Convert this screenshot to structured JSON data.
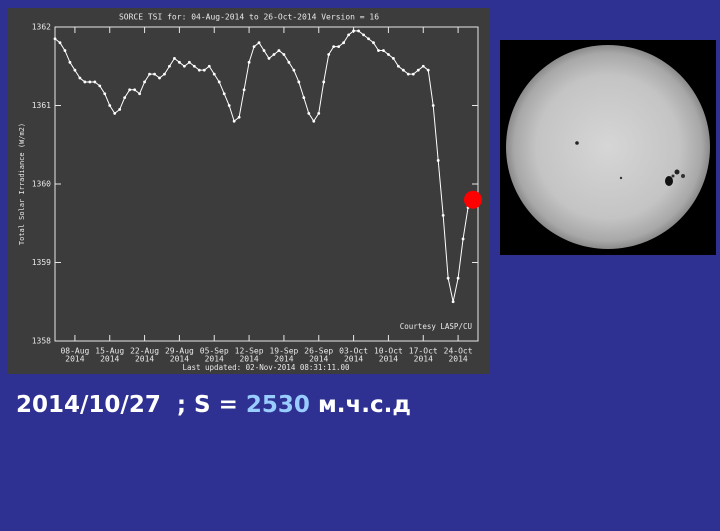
{
  "chart_data": {
    "type": "line",
    "title": "SORCE TSI for: 04-Aug-2014 to 26-Oct-2014 Version = 16",
    "y_label": "Total Solar Irradiance (W/m2)",
    "annotations": [
      "Courtesy LASP/CU",
      "Last updated: 02-Nov-2014 08:31:11.00"
    ],
    "x": [
      "2014-08-04",
      "2014-08-05",
      "2014-08-06",
      "2014-08-07",
      "2014-08-08",
      "2014-08-09",
      "2014-08-10",
      "2014-08-11",
      "2014-08-12",
      "2014-08-13",
      "2014-08-14",
      "2014-08-15",
      "2014-08-16",
      "2014-08-17",
      "2014-08-18",
      "2014-08-19",
      "2014-08-20",
      "2014-08-21",
      "2014-08-22",
      "2014-08-23",
      "2014-08-24",
      "2014-08-25",
      "2014-08-26",
      "2014-08-27",
      "2014-08-28",
      "2014-08-29",
      "2014-08-30",
      "2014-08-31",
      "2014-09-01",
      "2014-09-02",
      "2014-09-03",
      "2014-09-04",
      "2014-09-05",
      "2014-09-06",
      "2014-09-07",
      "2014-09-08",
      "2014-09-09",
      "2014-09-10",
      "2014-09-11",
      "2014-09-12",
      "2014-09-13",
      "2014-09-14",
      "2014-09-15",
      "2014-09-16",
      "2014-09-17",
      "2014-09-18",
      "2014-09-19",
      "2014-09-20",
      "2014-09-21",
      "2014-09-22",
      "2014-09-23",
      "2014-09-24",
      "2014-09-25",
      "2014-09-26",
      "2014-09-27",
      "2014-09-28",
      "2014-09-29",
      "2014-09-30",
      "2014-10-01",
      "2014-10-02",
      "2014-10-03",
      "2014-10-04",
      "2014-10-05",
      "2014-10-06",
      "2014-10-07",
      "2014-10-08",
      "2014-10-09",
      "2014-10-10",
      "2014-10-11",
      "2014-10-12",
      "2014-10-13",
      "2014-10-14",
      "2014-10-15",
      "2014-10-16",
      "2014-10-17",
      "2014-10-18",
      "2014-10-19",
      "2014-10-20",
      "2014-10-21",
      "2014-10-22",
      "2014-10-23",
      "2014-10-24",
      "2014-10-25",
      "2014-10-26"
    ],
    "values": [
      1361.85,
      1361.8,
      1361.7,
      1361.55,
      1361.45,
      1361.35,
      1361.3,
      1361.3,
      1361.3,
      1361.25,
      1361.15,
      1361.0,
      1360.9,
      1360.95,
      1361.1,
      1361.2,
      1361.2,
      1361.15,
      1361.3,
      1361.4,
      1361.4,
      1361.35,
      1361.4,
      1361.5,
      1361.6,
      1361.55,
      1361.5,
      1361.55,
      1361.5,
      1361.45,
      1361.45,
      1361.5,
      1361.4,
      1361.3,
      1361.15,
      1361.0,
      1360.8,
      1360.85,
      1361.2,
      1361.55,
      1361.75,
      1361.8,
      1361.7,
      1361.6,
      1361.65,
      1361.7,
      1361.65,
      1361.55,
      1361.45,
      1361.3,
      1361.1,
      1360.9,
      1360.8,
      1360.9,
      1361.3,
      1361.65,
      1361.75,
      1361.75,
      1361.8,
      1361.9,
      1361.95,
      1361.95,
      1361.9,
      1361.85,
      1361.8,
      1361.7,
      1361.7,
      1361.65,
      1361.6,
      1361.5,
      1361.45,
      1361.4,
      1361.4,
      1361.45,
      1361.5,
      1361.45,
      1361.0,
      1360.3,
      1359.6,
      1358.8,
      1358.5,
      1358.8,
      1359.3,
      1359.7
    ],
    "color": "#ffffff",
    "marker": {
      "x": "2014-10-27",
      "value": 1359.8,
      "color": "#ff0000"
    },
    "xlim": [
      "2014-08-04",
      "2014-10-28"
    ],
    "xticks": [
      {
        "value": "2014-08-08",
        "label": [
          "08-Aug",
          "2014"
        ]
      },
      {
        "value": "2014-08-15",
        "label": [
          "15-Aug",
          "2014"
        ]
      },
      {
        "value": "2014-08-22",
        "label": [
          "22-Aug",
          "2014"
        ]
      },
      {
        "value": "2014-08-29",
        "label": [
          "29-Aug",
          "2014"
        ]
      },
      {
        "value": "2014-09-05",
        "label": [
          "05-Sep",
          "2014"
        ]
      },
      {
        "value": "2014-09-12",
        "label": [
          "12-Sep",
          "2014"
        ]
      },
      {
        "value": "2014-09-19",
        "label": [
          "19-Sep",
          "2014"
        ]
      },
      {
        "value": "2014-09-26",
        "label": [
          "26-Sep",
          "2014"
        ]
      },
      {
        "value": "2014-10-03",
        "label": [
          "03-Oct",
          "2014"
        ]
      },
      {
        "value": "2014-10-10",
        "label": [
          "10-Oct",
          "2014"
        ]
      },
      {
        "value": "2014-10-17",
        "label": [
          "17-Oct",
          "2014"
        ]
      },
      {
        "value": "2014-10-24",
        "label": [
          "24-Oct",
          "2014"
        ]
      }
    ],
    "ylim": [
      1358,
      1362
    ],
    "yticks": [
      1358,
      1359,
      1360,
      1361,
      1362
    ],
    "grid": false
  },
  "caption": {
    "date": "2014/10/27",
    "label": "; S =",
    "value": 2530,
    "unit": "м.ч.с.д"
  }
}
